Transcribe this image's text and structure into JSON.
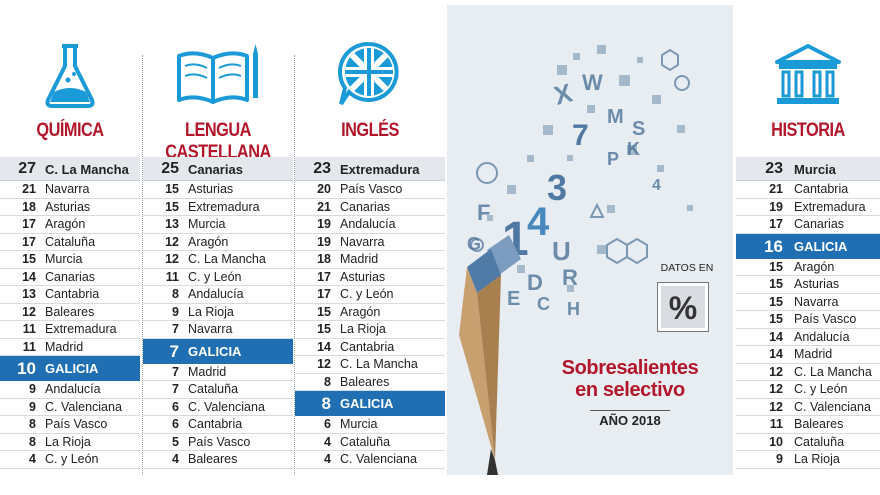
{
  "columns": [
    {
      "subject": "QUÍMICA",
      "icon": "flask-icon",
      "top": {
        "n": "27",
        "region": "C. La Mancha"
      },
      "rows": [
        {
          "n": "21",
          "region": "Navarra"
        },
        {
          "n": "18",
          "region": "Asturias"
        },
        {
          "n": "17",
          "region": "Aragón"
        },
        {
          "n": "17",
          "region": "Cataluña"
        },
        {
          "n": "15",
          "region": "Murcia"
        },
        {
          "n": "14",
          "region": "Canarias"
        },
        {
          "n": "13",
          "region": "Cantabria"
        },
        {
          "n": "12",
          "region": "Baleares"
        },
        {
          "n": "11",
          "region": "Extremadura"
        },
        {
          "n": "11",
          "region": "Madrid"
        }
      ],
      "galicia": {
        "n": "10",
        "region": "GALICIA"
      },
      "after": [
        {
          "n": "9",
          "region": "Andalucía"
        },
        {
          "n": "9",
          "region": "C. Valenciana"
        },
        {
          "n": "8",
          "region": "País Vasco"
        },
        {
          "n": "8",
          "region": "La Rioja"
        },
        {
          "n": "4",
          "region": "C. y León"
        }
      ]
    },
    {
      "subject": "LENGUA CASTELLANA",
      "icon": "book-icon",
      "top": {
        "n": "25",
        "region": "Canarias"
      },
      "rows": [
        {
          "n": "15",
          "region": "Asturias"
        },
        {
          "n": "15",
          "region": "Extremadura"
        },
        {
          "n": "13",
          "region": "Murcia"
        },
        {
          "n": "12",
          "region": "Aragón"
        },
        {
          "n": "12",
          "region": "C. La Mancha"
        },
        {
          "n": "11",
          "region": "C. y León"
        },
        {
          "n": "8",
          "region": "Andalucía"
        },
        {
          "n": "9",
          "region": "La Rioja"
        },
        {
          "n": "7",
          "region": "Navarra"
        }
      ],
      "galicia": {
        "n": "7",
        "region": "GALICIA"
      },
      "after": [
        {
          "n": "7",
          "region": "Madrid"
        },
        {
          "n": "7",
          "region": "Cataluña"
        },
        {
          "n": "6",
          "region": "C. Valenciana"
        },
        {
          "n": "6",
          "region": "Cantabria"
        },
        {
          "n": "5",
          "region": "País Vasco"
        },
        {
          "n": "4",
          "region": "Baleares"
        }
      ]
    },
    {
      "subject": "INGLÉS",
      "icon": "uk-flag-speech-icon",
      "top": {
        "n": "23",
        "region": "Extremadura"
      },
      "rows": [
        {
          "n": "20",
          "region": "País Vasco"
        },
        {
          "n": "21",
          "region": "Canarias"
        },
        {
          "n": "19",
          "region": "Andalucía"
        },
        {
          "n": "19",
          "region": "Navarra"
        },
        {
          "n": "18",
          "region": "Madrid"
        },
        {
          "n": "17",
          "region": "Asturias"
        },
        {
          "n": "17",
          "region": "C. y León"
        },
        {
          "n": "15",
          "region": "Aragón"
        },
        {
          "n": "15",
          "region": "La Rioja"
        },
        {
          "n": "14",
          "region": "Cantabria"
        },
        {
          "n": "12",
          "region": "C. La Mancha"
        },
        {
          "n": "8",
          "region": "Baleares"
        }
      ],
      "galicia": {
        "n": "8",
        "region": "GALICIA"
      },
      "after": [
        {
          "n": "6",
          "region": "Murcia"
        },
        {
          "n": "4",
          "region": "Cataluña"
        },
        {
          "n": "4",
          "region": "C. Valenciana"
        }
      ]
    },
    {
      "subject": "HISTORIA",
      "icon": "museum-icon",
      "top": {
        "n": "23",
        "region": "Murcia"
      },
      "rows": [
        {
          "n": "21",
          "region": "Cantabria"
        },
        {
          "n": "19",
          "region": "Extremadura"
        },
        {
          "n": "17",
          "region": "Canarias"
        }
      ],
      "galicia": {
        "n": "16",
        "region": "GALICIA"
      },
      "after": [
        {
          "n": "15",
          "region": "Aragón"
        },
        {
          "n": "15",
          "region": "Asturias"
        },
        {
          "n": "15",
          "region": "Navarra"
        },
        {
          "n": "15",
          "region": "País Vasco"
        },
        {
          "n": "14",
          "region": "Andalucía"
        },
        {
          "n": "14",
          "region": "Madrid"
        },
        {
          "n": "12",
          "region": "C. La Mancha"
        },
        {
          "n": "12",
          "region": "C. y León"
        },
        {
          "n": "12",
          "region": "C. Valenciana"
        },
        {
          "n": "11",
          "region": "Baleares"
        },
        {
          "n": "10",
          "region": "Cataluña"
        },
        {
          "n": "9",
          "region": "La Rioja"
        }
      ]
    }
  ],
  "center": {
    "stamp_label": "DATOS EN",
    "stamp_symbol": "%",
    "headline_line1": "Sobresalientes",
    "headline_line2": "en selectivo",
    "year": "AÑO 2018"
  },
  "colors": {
    "accent_red": "#b3162b",
    "galicia_blue": "#1f6fb2",
    "icon_blue": "#1a9ad6"
  },
  "chart_data": {
    "type": "table",
    "title": "Sobresalientes en selectivo",
    "subtitle": "AÑO 2018",
    "unit": "%",
    "tables": [
      {
        "subject": "QUÍMICA",
        "values": [
          [
            "C. La Mancha",
            27
          ],
          [
            "Navarra",
            21
          ],
          [
            "Asturias",
            18
          ],
          [
            "Aragón",
            17
          ],
          [
            "Cataluña",
            17
          ],
          [
            "Murcia",
            15
          ],
          [
            "Canarias",
            14
          ],
          [
            "Cantabria",
            13
          ],
          [
            "Baleares",
            12
          ],
          [
            "Extremadura",
            11
          ],
          [
            "Madrid",
            11
          ],
          [
            "GALICIA",
            10
          ],
          [
            "Andalucía",
            9
          ],
          [
            "C. Valenciana",
            9
          ],
          [
            "País Vasco",
            8
          ],
          [
            "La Rioja",
            8
          ],
          [
            "C. y León",
            4
          ]
        ]
      },
      {
        "subject": "LENGUA CASTELLANA",
        "values": [
          [
            "Canarias",
            25
          ],
          [
            "Asturias",
            15
          ],
          [
            "Extremadura",
            15
          ],
          [
            "Murcia",
            13
          ],
          [
            "Aragón",
            12
          ],
          [
            "C. La Mancha",
            12
          ],
          [
            "C. y León",
            11
          ],
          [
            "Andalucía",
            8
          ],
          [
            "La Rioja",
            9
          ],
          [
            "Navarra",
            7
          ],
          [
            "GALICIA",
            7
          ],
          [
            "Madrid",
            7
          ],
          [
            "Cataluña",
            7
          ],
          [
            "C. Valenciana",
            6
          ],
          [
            "Cantabria",
            6
          ],
          [
            "País Vasco",
            5
          ],
          [
            "Baleares",
            4
          ]
        ]
      },
      {
        "subject": "INGLÉS",
        "values": [
          [
            "Extremadura",
            23
          ],
          [
            "País Vasco",
            20
          ],
          [
            "Canarias",
            21
          ],
          [
            "Andalucía",
            19
          ],
          [
            "Navarra",
            19
          ],
          [
            "Madrid",
            18
          ],
          [
            "Asturias",
            17
          ],
          [
            "C. y León",
            17
          ],
          [
            "Aragón",
            15
          ],
          [
            "La Rioja",
            15
          ],
          [
            "Cantabria",
            14
          ],
          [
            "C. La Mancha",
            12
          ],
          [
            "Baleares",
            8
          ],
          [
            "GALICIA",
            8
          ],
          [
            "Murcia",
            6
          ],
          [
            "Cataluña",
            4
          ],
          [
            "C. Valenciana",
            4
          ]
        ]
      },
      {
        "subject": "HISTORIA",
        "values": [
          [
            "Murcia",
            23
          ],
          [
            "Cantabria",
            21
          ],
          [
            "Extremadura",
            19
          ],
          [
            "Canarias",
            17
          ],
          [
            "GALICIA",
            16
          ],
          [
            "Aragón",
            15
          ],
          [
            "Asturias",
            15
          ],
          [
            "Navarra",
            15
          ],
          [
            "País Vasco",
            15
          ],
          [
            "Andalucía",
            14
          ],
          [
            "Madrid",
            14
          ],
          [
            "C. La Mancha",
            12
          ],
          [
            "C. y León",
            12
          ],
          [
            "C. Valenciana",
            12
          ],
          [
            "Baleares",
            11
          ],
          [
            "Cataluña",
            10
          ],
          [
            "La Rioja",
            9
          ]
        ]
      }
    ]
  }
}
